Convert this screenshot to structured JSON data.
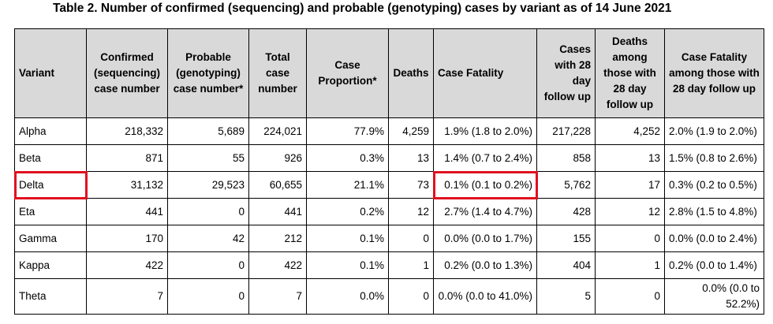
{
  "title": "Table 2. Number of confirmed (sequencing) and probable (genotyping) cases by variant as of 14 June 2021",
  "headers": {
    "variant": "Variant",
    "confirmed": "Confirmed (sequencing) case number",
    "probable": "Probable (genotyping) case number*",
    "total": "Total case number",
    "proportion": "Case Proportion*",
    "deaths": "Deaths",
    "fatality": "Case Fatality",
    "cases28": "Cases with 28 day follow up",
    "deaths28": "Deaths among those with 28 day follow up",
    "fatality28": "Case Fatality among those with 28 day follow up"
  },
  "rows": [
    {
      "variant": "Alpha",
      "confirmed": "218,332",
      "probable": "5,689",
      "total": "224,021",
      "proportion": "77.9%",
      "deaths": "4,259",
      "fatality": "1.9% (1.8 to 2.0%)",
      "cases28": "217,228",
      "deaths28": "4,252",
      "fatality28": "2.0% (1.9 to 2.0%)"
    },
    {
      "variant": "Beta",
      "confirmed": "871",
      "probable": "55",
      "total": "926",
      "proportion": "0.3%",
      "deaths": "13",
      "fatality": "1.4% (0.7 to 2.4%)",
      "cases28": "858",
      "deaths28": "13",
      "fatality28": "1.5% (0.8 to 2.6%)"
    },
    {
      "variant": "Delta",
      "confirmed": "31,132",
      "probable": "29,523",
      "total": "60,655",
      "proportion": "21.1%",
      "deaths": "73",
      "fatality": "0.1% (0.1 to 0.2%)",
      "cases28": "5,762",
      "deaths28": "17",
      "fatality28": "0.3% (0.2 to 0.5%)"
    },
    {
      "variant": "Eta",
      "confirmed": "441",
      "probable": "0",
      "total": "441",
      "proportion": "0.2%",
      "deaths": "12",
      "fatality": "2.7% (1.4 to 4.7%)",
      "cases28": "428",
      "deaths28": "12",
      "fatality28": "2.8% (1.5 to 4.8%)"
    },
    {
      "variant": "Gamma",
      "confirmed": "170",
      "probable": "42",
      "total": "212",
      "proportion": "0.1%",
      "deaths": "0",
      "fatality": "0.0% (0.0 to 1.7%)",
      "cases28": "155",
      "deaths28": "0",
      "fatality28": "0.0% (0.0 to 2.4%)"
    },
    {
      "variant": "Kappa",
      "confirmed": "422",
      "probable": "0",
      "total": "422",
      "proportion": "0.1%",
      "deaths": "1",
      "fatality": "0.2% (0.0 to 1.3%)",
      "cases28": "404",
      "deaths28": "1",
      "fatality28": "0.2% (0.0 to 1.4%)"
    },
    {
      "variant": "Theta",
      "confirmed": "7",
      "probable": "0",
      "total": "7",
      "proportion": "0.0%",
      "deaths": "0",
      "fatality": "0.0% (0.0 to 41.0%)",
      "cases28": "5",
      "deaths28": "0",
      "fatality28": "0.0% (0.0 to 52.2%)"
    }
  ],
  "highlight_color": "#e01020"
}
